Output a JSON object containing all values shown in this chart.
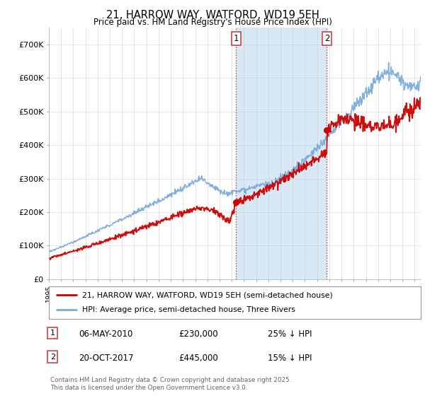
{
  "title": "21, HARROW WAY, WATFORD, WD19 5EH",
  "subtitle": "Price paid vs. HM Land Registry's House Price Index (HPI)",
  "ylim": [
    0,
    750000
  ],
  "yticks": [
    0,
    100000,
    200000,
    300000,
    400000,
    500000,
    600000,
    700000
  ],
  "ytick_labels": [
    "£0",
    "£100K",
    "£200K",
    "£300K",
    "£400K",
    "£500K",
    "£600K",
    "£700K"
  ],
  "hpi_color": "#7aacdc",
  "price_color": "#cc0000",
  "vline_color": "#cc4444",
  "span_color": "#d8e8f5",
  "grid_color": "#cccccc",
  "bg_color": "#ffffff",
  "legend_label_price": "21, HARROW WAY, WATFORD, WD19 5EH (semi-detached house)",
  "legend_label_hpi": "HPI: Average price, semi-detached house, Three Rivers",
  "transaction1_date": "06-MAY-2010",
  "transaction1_price": "£230,000",
  "transaction1_note": "25% ↓ HPI",
  "transaction2_date": "20-OCT-2017",
  "transaction2_price": "£445,000",
  "transaction2_note": "15% ↓ HPI",
  "vline1_x": 2010.35,
  "vline2_x": 2017.8,
  "t1_y": 230000,
  "t2_y": 445000,
  "footnote": "Contains HM Land Registry data © Crown copyright and database right 2025.\nThis data is licensed under the Open Government Licence v3.0.",
  "xmin": 1995,
  "xmax": 2025.5
}
